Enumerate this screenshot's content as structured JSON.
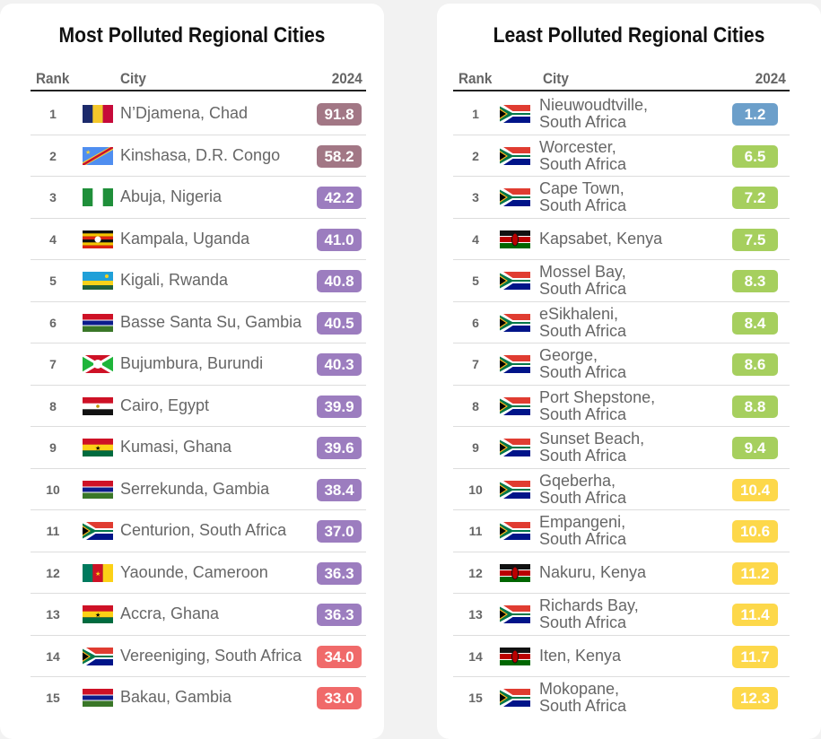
{
  "colors": {
    "maroon": "#a27785",
    "purple": "#9c7dbf",
    "red": "#f06a6a",
    "blue": "#6c9fca",
    "green": "#a6cf5e",
    "yellow": "#fdd84a"
  },
  "left": {
    "title": "Most Polluted Regional Cities",
    "headers": {
      "rank": "Rank",
      "city": "City",
      "year": "2024"
    },
    "rows": [
      {
        "rank": "1",
        "city": "N’Djamena, Chad",
        "value": "91.8",
        "color": "maroon",
        "flag": "chad"
      },
      {
        "rank": "2",
        "city": "Kinshasa, D.R. Congo",
        "value": "58.2",
        "color": "maroon",
        "flag": "drc"
      },
      {
        "rank": "3",
        "city": "Abuja, Nigeria",
        "value": "42.2",
        "color": "purple",
        "flag": "nigeria"
      },
      {
        "rank": "4",
        "city": "Kampala, Uganda",
        "value": "41.0",
        "color": "purple",
        "flag": "uganda"
      },
      {
        "rank": "5",
        "city": "Kigali, Rwanda",
        "value": "40.8",
        "color": "purple",
        "flag": "rwanda"
      },
      {
        "rank": "6",
        "city": "Basse Santa Su, Gambia",
        "value": "40.5",
        "color": "purple",
        "flag": "gambia"
      },
      {
        "rank": "7",
        "city": "Bujumbura, Burundi",
        "value": "40.3",
        "color": "purple",
        "flag": "burundi"
      },
      {
        "rank": "8",
        "city": "Cairo, Egypt",
        "value": "39.9",
        "color": "purple",
        "flag": "egypt"
      },
      {
        "rank": "9",
        "city": "Kumasi, Ghana",
        "value": "39.6",
        "color": "purple",
        "flag": "ghana"
      },
      {
        "rank": "10",
        "city": "Serrekunda, Gambia",
        "value": "38.4",
        "color": "purple",
        "flag": "gambia"
      },
      {
        "rank": "11",
        "city": "Centurion, South Africa",
        "value": "37.0",
        "color": "purple",
        "flag": "southafrica"
      },
      {
        "rank": "12",
        "city": "Yaounde, Cameroon",
        "value": "36.3",
        "color": "purple",
        "flag": "cameroon"
      },
      {
        "rank": "13",
        "city": "Accra, Ghana",
        "value": "36.3",
        "color": "purple",
        "flag": "ghana"
      },
      {
        "rank": "14",
        "city": "Vereeniging, South Africa",
        "value": "34.0",
        "color": "red",
        "flag": "southafrica"
      },
      {
        "rank": "15",
        "city": "Bakau, Gambia",
        "value": "33.0",
        "color": "red",
        "flag": "gambia"
      }
    ]
  },
  "right": {
    "title": "Least Polluted Regional Cities",
    "headers": {
      "rank": "Rank",
      "city": "City",
      "year": "2024"
    },
    "rows": [
      {
        "rank": "1",
        "city": "Nieuwoudtville,",
        "city2": "South Africa",
        "value": "1.2",
        "color": "blue",
        "flag": "southafrica"
      },
      {
        "rank": "2",
        "city": "Worcester,",
        "city2": "South Africa",
        "value": "6.5",
        "color": "green",
        "flag": "southafrica"
      },
      {
        "rank": "3",
        "city": "Cape Town,",
        "city2": "South Africa",
        "value": "7.2",
        "color": "green",
        "flag": "southafrica"
      },
      {
        "rank": "4",
        "city": "Kapsabet, Kenya",
        "value": "7.5",
        "color": "green",
        "flag": "kenya"
      },
      {
        "rank": "5",
        "city": "Mossel Bay,",
        "city2": "South Africa",
        "value": "8.3",
        "color": "green",
        "flag": "southafrica"
      },
      {
        "rank": "6",
        "city": "eSikhaleni,",
        "city2": "South Africa",
        "value": "8.4",
        "color": "green",
        "flag": "southafrica"
      },
      {
        "rank": "7",
        "city": "George,",
        "city2": "South Africa",
        "value": "8.6",
        "color": "green",
        "flag": "southafrica"
      },
      {
        "rank": "8",
        "city": "Port Shepstone,",
        "city2": "South Africa",
        "value": "8.8",
        "color": "green",
        "flag": "southafrica"
      },
      {
        "rank": "9",
        "city": "Sunset Beach,",
        "city2": "South Africa",
        "value": "9.4",
        "color": "green",
        "flag": "southafrica"
      },
      {
        "rank": "10",
        "city": "Gqeberha,",
        "city2": "South Africa",
        "value": "10.4",
        "color": "yellow",
        "flag": "southafrica"
      },
      {
        "rank": "11",
        "city": "Empangeni,",
        "city2": "South Africa",
        "value": "10.6",
        "color": "yellow",
        "flag": "southafrica"
      },
      {
        "rank": "12",
        "city": "Nakuru, Kenya",
        "value": "11.2",
        "color": "yellow",
        "flag": "kenya"
      },
      {
        "rank": "13",
        "city": "Richards Bay,",
        "city2": "South Africa",
        "value": "11.4",
        "color": "yellow",
        "flag": "southafrica"
      },
      {
        "rank": "14",
        "city": "Iten, Kenya",
        "value": "11.7",
        "color": "yellow",
        "flag": "kenya"
      },
      {
        "rank": "15",
        "city": "Mokopane,",
        "city2": "South Africa",
        "value": "12.3",
        "color": "yellow",
        "flag": "southafrica"
      }
    ]
  }
}
